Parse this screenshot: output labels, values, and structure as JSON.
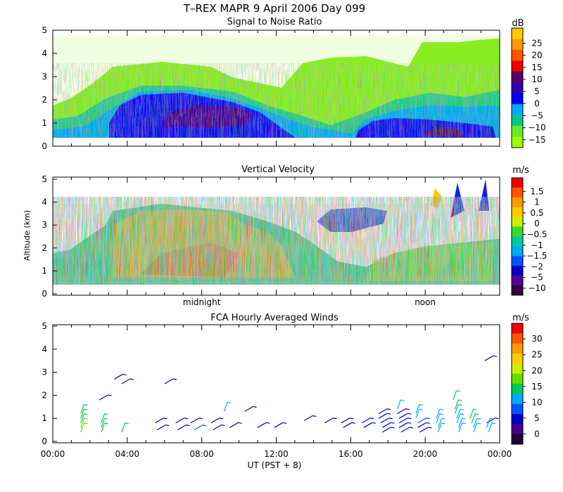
{
  "figure": {
    "title": "T–REX  MAPR  9 April 2006 Day 099",
    "shared_x_axis": {
      "ticks": [
        "00:00",
        "04:00",
        "08:00",
        "12:00",
        "16:00",
        "20:00",
        "00:00"
      ],
      "xlabel": "UT  (PST + 8)",
      "range_hours": [
        0,
        24
      ],
      "markers": [
        {
          "label": "midnight",
          "hour": 8
        },
        {
          "label": "noon",
          "hour": 20
        }
      ]
    },
    "ylabel": "Altitude (km)"
  },
  "chart_data": [
    {
      "type": "heatmap",
      "title": "Signal to Noise Ratio",
      "unit": "dB",
      "ylim": [
        0,
        5
      ],
      "y_ticks": [
        "0",
        "1",
        "2",
        "3",
        "4",
        "5"
      ],
      "colorbar": {
        "labels": [
          "25",
          "20",
          "15",
          "10",
          "5",
          "0",
          "−5",
          "−10",
          "−15"
        ],
        "colors": [
          "#ffcc00",
          "#ff9900",
          "#ff5500",
          "#ee0000",
          "#550066",
          "#3300aa",
          "#0000ff",
          "#00aaff",
          "#00cc88",
          "#66ee22",
          "#99ff00"
        ]
      }
    },
    {
      "type": "heatmap",
      "title": "Vertical Velocity",
      "unit": "m/s",
      "ylim": [
        0,
        5
      ],
      "y_ticks": [
        "0",
        "1",
        "2",
        "3",
        "4",
        "5"
      ],
      "colorbar": {
        "labels": [
          "1.5",
          "1",
          "0.5",
          "0",
          "−0.5",
          "−1",
          "−1.5",
          "−2",
          "−5",
          "−10"
        ],
        "colors": [
          "#ee0000",
          "#ff5500",
          "#ff9900",
          "#ffcc00",
          "#ccee00",
          "#33dd33",
          "#00cc99",
          "#00aaff",
          "#0055ff",
          "#0000cc",
          "#550099",
          "#330044"
        ]
      }
    },
    {
      "type": "scatter",
      "title": "FCA Hourly Averaged Winds",
      "unit": "m/s",
      "ylim": [
        0,
        5
      ],
      "y_ticks": [
        "0",
        "1",
        "2",
        "3",
        "4",
        "5"
      ],
      "colorbar": {
        "labels": [
          "30",
          "25",
          "20",
          "15",
          "10",
          "5",
          "0"
        ],
        "colors": [
          "#ee0000",
          "#ff5500",
          "#ff9900",
          "#ffcc00",
          "#ccee00",
          "#66dd00",
          "#00cc55",
          "#00aaff",
          "#0055ff",
          "#0000cc",
          "#440088",
          "#220033"
        ]
      },
      "barbs": [
        {
          "hour": 1.5,
          "alt": 1.2,
          "speed": 14
        },
        {
          "hour": 1.5,
          "alt": 1.0,
          "speed": 14
        },
        {
          "hour": 1.5,
          "alt": 0.8,
          "speed": 15
        },
        {
          "hour": 1.5,
          "alt": 0.6,
          "speed": 16
        },
        {
          "hour": 1.5,
          "alt": 0.4,
          "speed": 16
        },
        {
          "hour": 2.5,
          "alt": 1.8,
          "speed": 6
        },
        {
          "hour": 2.6,
          "alt": 0.8,
          "speed": 14
        },
        {
          "hour": 2.6,
          "alt": 0.6,
          "speed": 15
        },
        {
          "hour": 2.6,
          "alt": 0.4,
          "speed": 15
        },
        {
          "hour": 3.3,
          "alt": 2.7,
          "speed": 6
        },
        {
          "hour": 3.7,
          "alt": 2.5,
          "speed": 6
        },
        {
          "hour": 3.7,
          "alt": 0.4,
          "speed": 15
        },
        {
          "hour": 5.5,
          "alt": 0.8,
          "speed": 6
        },
        {
          "hour": 5.6,
          "alt": 0.5,
          "speed": 6
        },
        {
          "hour": 6.0,
          "alt": 2.5,
          "speed": 6
        },
        {
          "hour": 6.6,
          "alt": 0.8,
          "speed": 6
        },
        {
          "hour": 6.7,
          "alt": 0.5,
          "speed": 6
        },
        {
          "hour": 7.4,
          "alt": 0.8,
          "speed": 6
        },
        {
          "hour": 7.6,
          "alt": 0.5,
          "speed": 7
        },
        {
          "hour": 8.5,
          "alt": 0.8,
          "speed": 6
        },
        {
          "hour": 8.6,
          "alt": 0.5,
          "speed": 6
        },
        {
          "hour": 9.2,
          "alt": 1.3,
          "speed": 11
        },
        {
          "hour": 9.5,
          "alt": 0.6,
          "speed": 6
        },
        {
          "hour": 10.3,
          "alt": 1.3,
          "speed": 6
        },
        {
          "hour": 11.0,
          "alt": 0.6,
          "speed": 6
        },
        {
          "hour": 11.9,
          "alt": 0.6,
          "speed": 6
        },
        {
          "hour": 13.5,
          "alt": 0.9,
          "speed": 6
        },
        {
          "hour": 14.6,
          "alt": 0.8,
          "speed": 6
        },
        {
          "hour": 15.5,
          "alt": 0.8,
          "speed": 6
        },
        {
          "hour": 15.6,
          "alt": 0.6,
          "speed": 6
        },
        {
          "hour": 16.6,
          "alt": 0.8,
          "speed": 6
        },
        {
          "hour": 16.7,
          "alt": 0.6,
          "speed": 6
        },
        {
          "hour": 17.5,
          "alt": 1.2,
          "speed": 6
        },
        {
          "hour": 17.5,
          "alt": 1.0,
          "speed": 6
        },
        {
          "hour": 17.6,
          "alt": 0.8,
          "speed": 6
        },
        {
          "hour": 17.7,
          "alt": 0.6,
          "speed": 6
        },
        {
          "hour": 17.7,
          "alt": 0.4,
          "speed": 6
        },
        {
          "hour": 18.5,
          "alt": 1.4,
          "speed": 11
        },
        {
          "hour": 18.5,
          "alt": 1.2,
          "speed": 6
        },
        {
          "hour": 18.6,
          "alt": 1.0,
          "speed": 6
        },
        {
          "hour": 18.6,
          "alt": 0.8,
          "speed": 6
        },
        {
          "hour": 18.6,
          "alt": 0.6,
          "speed": 6
        },
        {
          "hour": 18.7,
          "alt": 0.4,
          "speed": 6
        },
        {
          "hour": 19.5,
          "alt": 1.2,
          "speed": 11
        },
        {
          "hour": 19.5,
          "alt": 1.0,
          "speed": 11
        },
        {
          "hour": 19.6,
          "alt": 0.8,
          "speed": 9
        },
        {
          "hour": 19.6,
          "alt": 0.6,
          "speed": 6
        },
        {
          "hour": 19.7,
          "alt": 0.4,
          "speed": 6
        },
        {
          "hour": 20.6,
          "alt": 1.0,
          "speed": 11
        },
        {
          "hour": 20.6,
          "alt": 0.8,
          "speed": 11
        },
        {
          "hour": 20.7,
          "alt": 0.6,
          "speed": 11
        },
        {
          "hour": 20.7,
          "alt": 0.4,
          "speed": 11
        },
        {
          "hour": 21.5,
          "alt": 1.8,
          "speed": 15
        },
        {
          "hour": 21.6,
          "alt": 1.4,
          "speed": 14
        },
        {
          "hour": 21.6,
          "alt": 1.2,
          "speed": 11
        },
        {
          "hour": 21.7,
          "alt": 1.0,
          "speed": 11
        },
        {
          "hour": 21.7,
          "alt": 0.8,
          "speed": 11
        },
        {
          "hour": 21.8,
          "alt": 0.6,
          "speed": 11
        },
        {
          "hour": 21.8,
          "alt": 0.4,
          "speed": 11
        },
        {
          "hour": 22.4,
          "alt": 1.0,
          "speed": 15
        },
        {
          "hour": 22.5,
          "alt": 0.8,
          "speed": 14
        },
        {
          "hour": 22.6,
          "alt": 0.6,
          "speed": 11
        },
        {
          "hour": 22.6,
          "alt": 0.4,
          "speed": 11
        },
        {
          "hour": 23.2,
          "alt": 3.5,
          "speed": 6
        },
        {
          "hour": 23.3,
          "alt": 0.8,
          "speed": 6
        },
        {
          "hour": 23.3,
          "alt": 0.6,
          "speed": 11
        },
        {
          "hour": 23.4,
          "alt": 0.4,
          "speed": 11
        }
      ]
    }
  ]
}
